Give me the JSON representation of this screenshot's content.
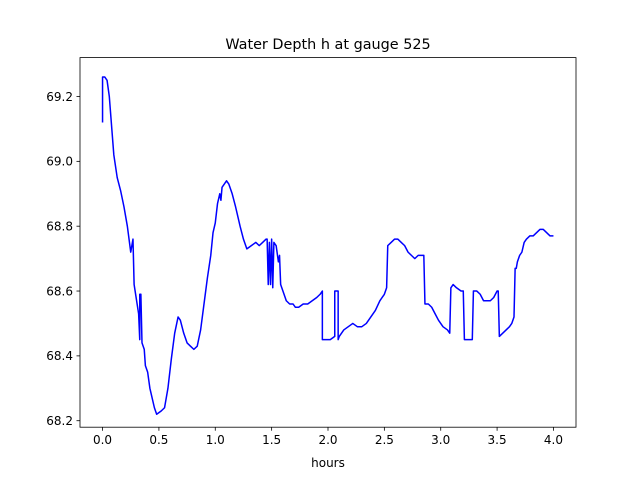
{
  "chart_data": {
    "type": "line",
    "title": "Water Depth h at gauge 525",
    "xlabel": "hours",
    "ylabel": "",
    "xlim": [
      -0.2,
      4.2
    ],
    "ylim": [
      68.18,
      69.32
    ],
    "grid": false,
    "legend": "none",
    "x_ticks": [
      0.0,
      0.5,
      1.0,
      1.5,
      2.0,
      2.5,
      3.0,
      3.5,
      4.0
    ],
    "x_tick_labels": [
      "0.0",
      "0.5",
      "1.0",
      "1.5",
      "2.0",
      "2.5",
      "3.0",
      "3.5",
      "4.0"
    ],
    "y_ticks": [
      68.2,
      68.4,
      68.6,
      68.8,
      69.0,
      69.2
    ],
    "y_tick_labels": [
      "68.2",
      "68.4",
      "68.6",
      "68.8",
      "69.0",
      "69.2"
    ],
    "series": [
      {
        "color": "#0000ff",
        "points": [
          [
            0.0,
            69.12
          ],
          [
            0.0,
            69.26
          ],
          [
            0.02,
            69.26
          ],
          [
            0.04,
            69.25
          ],
          [
            0.06,
            69.2
          ],
          [
            0.08,
            69.11
          ],
          [
            0.1,
            69.02
          ],
          [
            0.13,
            68.95
          ],
          [
            0.16,
            68.91
          ],
          [
            0.19,
            68.86
          ],
          [
            0.22,
            68.8
          ],
          [
            0.25,
            68.72
          ],
          [
            0.27,
            68.76
          ],
          [
            0.28,
            68.62
          ],
          [
            0.32,
            68.53
          ],
          [
            0.33,
            68.45
          ],
          [
            0.33,
            68.59
          ],
          [
            0.34,
            68.59
          ],
          [
            0.35,
            68.44
          ],
          [
            0.37,
            68.42
          ],
          [
            0.38,
            68.37
          ],
          [
            0.4,
            68.35
          ],
          [
            0.42,
            68.3
          ],
          [
            0.46,
            68.24
          ],
          [
            0.48,
            68.22
          ],
          [
            0.52,
            68.23
          ],
          [
            0.55,
            68.24
          ],
          [
            0.58,
            68.3
          ],
          [
            0.61,
            68.39
          ],
          [
            0.64,
            68.47
          ],
          [
            0.67,
            68.52
          ],
          [
            0.69,
            68.51
          ],
          [
            0.72,
            68.47
          ],
          [
            0.75,
            68.44
          ],
          [
            0.78,
            68.43
          ],
          [
            0.81,
            68.42
          ],
          [
            0.84,
            68.43
          ],
          [
            0.87,
            68.48
          ],
          [
            0.9,
            68.56
          ],
          [
            0.93,
            68.64
          ],
          [
            0.96,
            68.71
          ],
          [
            0.98,
            68.78
          ],
          [
            1.0,
            68.81
          ],
          [
            1.02,
            68.87
          ],
          [
            1.04,
            68.9
          ],
          [
            1.05,
            68.88
          ],
          [
            1.06,
            68.92
          ],
          [
            1.08,
            68.93
          ],
          [
            1.1,
            68.94
          ],
          [
            1.12,
            68.93
          ],
          [
            1.15,
            68.9
          ],
          [
            1.18,
            68.86
          ],
          [
            1.2,
            68.83
          ],
          [
            1.22,
            68.8
          ],
          [
            1.25,
            68.76
          ],
          [
            1.28,
            68.73
          ],
          [
            1.32,
            68.74
          ],
          [
            1.36,
            68.75
          ],
          [
            1.39,
            68.74
          ],
          [
            1.42,
            68.75
          ],
          [
            1.45,
            68.76
          ],
          [
            1.46,
            68.76
          ],
          [
            1.47,
            68.62
          ],
          [
            1.48,
            68.75
          ],
          [
            1.49,
            68.62
          ],
          [
            1.5,
            68.76
          ],
          [
            1.51,
            68.61
          ],
          [
            1.52,
            68.75
          ],
          [
            1.54,
            68.74
          ],
          [
            1.56,
            68.69
          ],
          [
            1.57,
            68.71
          ],
          [
            1.58,
            68.62
          ],
          [
            1.6,
            68.6
          ],
          [
            1.63,
            68.57
          ],
          [
            1.66,
            68.56
          ],
          [
            1.69,
            68.56
          ],
          [
            1.71,
            68.55
          ],
          [
            1.74,
            68.55
          ],
          [
            1.78,
            68.56
          ],
          [
            1.82,
            68.56
          ],
          [
            1.86,
            68.57
          ],
          [
            1.9,
            68.58
          ],
          [
            1.93,
            68.59
          ],
          [
            1.95,
            68.6
          ],
          [
            1.95,
            68.45
          ],
          [
            2.02,
            68.45
          ],
          [
            2.06,
            68.46
          ],
          [
            2.06,
            68.6
          ],
          [
            2.09,
            68.6
          ],
          [
            2.09,
            68.45
          ],
          [
            2.1,
            68.46
          ],
          [
            2.14,
            68.48
          ],
          [
            2.18,
            68.49
          ],
          [
            2.22,
            68.5
          ],
          [
            2.26,
            68.49
          ],
          [
            2.3,
            68.49
          ],
          [
            2.34,
            68.5
          ],
          [
            2.38,
            68.52
          ],
          [
            2.42,
            68.54
          ],
          [
            2.46,
            68.57
          ],
          [
            2.5,
            68.59
          ],
          [
            2.52,
            68.61
          ],
          [
            2.53,
            68.74
          ],
          [
            2.56,
            68.75
          ],
          [
            2.59,
            68.76
          ],
          [
            2.62,
            68.76
          ],
          [
            2.65,
            68.75
          ],
          [
            2.68,
            68.74
          ],
          [
            2.71,
            68.72
          ],
          [
            2.74,
            68.71
          ],
          [
            2.77,
            68.7
          ],
          [
            2.8,
            68.71
          ],
          [
            2.83,
            68.71
          ],
          [
            2.85,
            68.71
          ],
          [
            2.86,
            68.56
          ],
          [
            2.89,
            68.56
          ],
          [
            2.92,
            68.55
          ],
          [
            2.95,
            68.53
          ],
          [
            2.98,
            68.51
          ],
          [
            3.02,
            68.49
          ],
          [
            3.06,
            68.48
          ],
          [
            3.08,
            68.47
          ],
          [
            3.09,
            68.61
          ],
          [
            3.11,
            68.62
          ],
          [
            3.14,
            68.61
          ],
          [
            3.18,
            68.6
          ],
          [
            3.2,
            68.6
          ],
          [
            3.21,
            68.45
          ],
          [
            3.25,
            68.45
          ],
          [
            3.28,
            68.45
          ],
          [
            3.29,
            68.6
          ],
          [
            3.32,
            68.6
          ],
          [
            3.35,
            68.59
          ],
          [
            3.38,
            68.57
          ],
          [
            3.41,
            68.57
          ],
          [
            3.44,
            68.57
          ],
          [
            3.47,
            68.58
          ],
          [
            3.5,
            68.6
          ],
          [
            3.51,
            68.6
          ],
          [
            3.52,
            68.46
          ],
          [
            3.55,
            68.47
          ],
          [
            3.58,
            68.48
          ],
          [
            3.61,
            68.49
          ],
          [
            3.63,
            68.5
          ],
          [
            3.65,
            68.52
          ],
          [
            3.66,
            68.67
          ],
          [
            3.67,
            68.67
          ],
          [
            3.68,
            68.69
          ],
          [
            3.7,
            68.71
          ],
          [
            3.72,
            68.72
          ],
          [
            3.74,
            68.75
          ],
          [
            3.76,
            68.76
          ],
          [
            3.79,
            68.77
          ],
          [
            3.82,
            68.77
          ],
          [
            3.85,
            68.78
          ],
          [
            3.88,
            68.79
          ],
          [
            3.91,
            68.79
          ],
          [
            3.94,
            68.78
          ],
          [
            3.97,
            68.77
          ],
          [
            4.0,
            68.77
          ]
        ]
      }
    ]
  }
}
